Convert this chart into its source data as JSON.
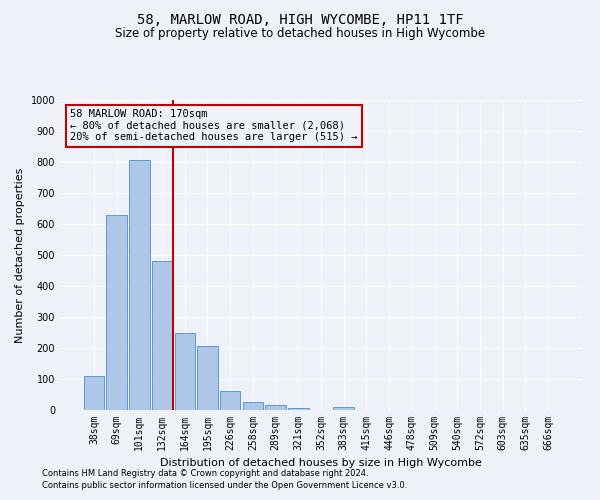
{
  "title": "58, MARLOW ROAD, HIGH WYCOMBE, HP11 1TF",
  "subtitle": "Size of property relative to detached houses in High Wycombe",
  "xlabel": "Distribution of detached houses by size in High Wycombe",
  "ylabel": "Number of detached properties",
  "categories": [
    "38sqm",
    "69sqm",
    "101sqm",
    "132sqm",
    "164sqm",
    "195sqm",
    "226sqm",
    "258sqm",
    "289sqm",
    "321sqm",
    "352sqm",
    "383sqm",
    "415sqm",
    "446sqm",
    "478sqm",
    "509sqm",
    "540sqm",
    "572sqm",
    "603sqm",
    "635sqm",
    "666sqm"
  ],
  "values": [
    110,
    630,
    805,
    480,
    250,
    205,
    62,
    25,
    17,
    8,
    0,
    10,
    0,
    0,
    0,
    0,
    0,
    0,
    0,
    0,
    0
  ],
  "bar_color": "#aec6e8",
  "bar_edge_color": "#5b9bd5",
  "vline_color": "#c00000",
  "vline_pos": 4.0,
  "annotation_text": "58 MARLOW ROAD: 170sqm\n← 80% of detached houses are smaller (2,068)\n20% of semi-detached houses are larger (515) →",
  "footnote1": "Contains HM Land Registry data © Crown copyright and database right 2024.",
  "footnote2": "Contains public sector information licensed under the Open Government Licence v3.0.",
  "ylim": [
    0,
    1000
  ],
  "yticks": [
    0,
    100,
    200,
    300,
    400,
    500,
    600,
    700,
    800,
    900,
    1000
  ],
  "bg_color": "#eef2f8",
  "grid_color": "#ffffff",
  "title_fontsize": 10,
  "subtitle_fontsize": 8.5,
  "axis_label_fontsize": 8,
  "tick_fontsize": 7,
  "footnote_fontsize": 6
}
